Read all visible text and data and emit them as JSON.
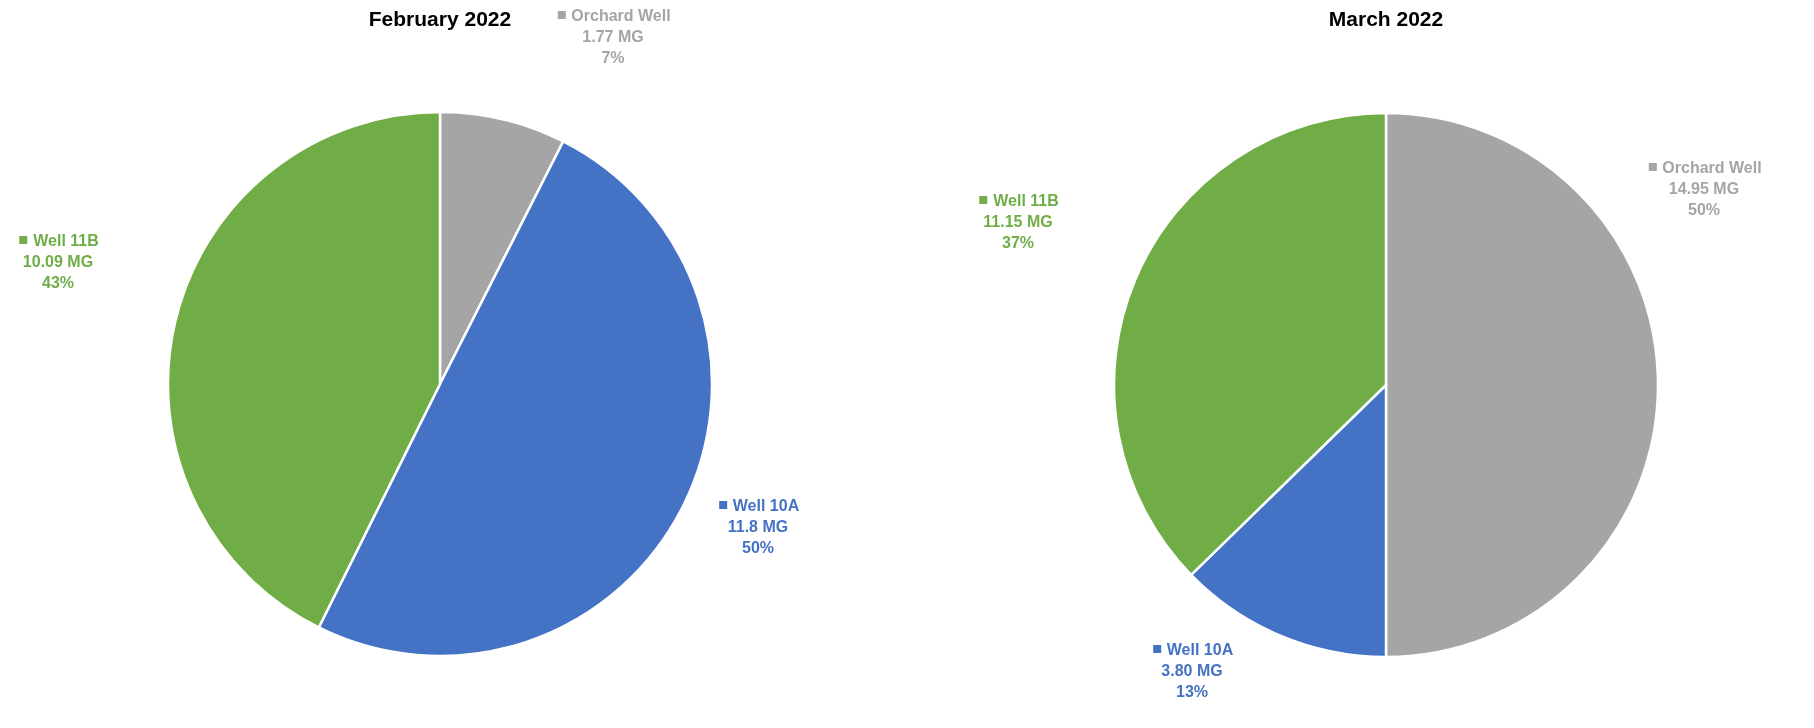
{
  "chart_data": [
    {
      "type": "pie",
      "title": "February 2022",
      "categories": [
        "Orchard Well",
        "Well 10A",
        "Well 11B"
      ],
      "values": [
        1.77,
        11.8,
        10.09
      ],
      "colors": [
        "#a5a5a5",
        "#4472c4",
        "#70ad47"
      ],
      "value_labels": [
        "1.77 MG\n7%",
        "11.8 MG\n50%",
        "10.09 MG\n43%"
      ],
      "legend": "top left"
    },
    {
      "type": "pie",
      "title": "March 2022",
      "categories": [
        "Orchard Well",
        "Well 10A",
        "Well 11B"
      ],
      "values": [
        14.95,
        3.8,
        11.15
      ],
      "colors": [
        "#a5a5a5",
        "#4472c4",
        "#70ad47"
      ],
      "value_labels": [
        "14.95 MG\n50%",
        "3.80 MG\n13%",
        "11.15 MG\n37%"
      ],
      "legend": "right"
    }
  ]
}
